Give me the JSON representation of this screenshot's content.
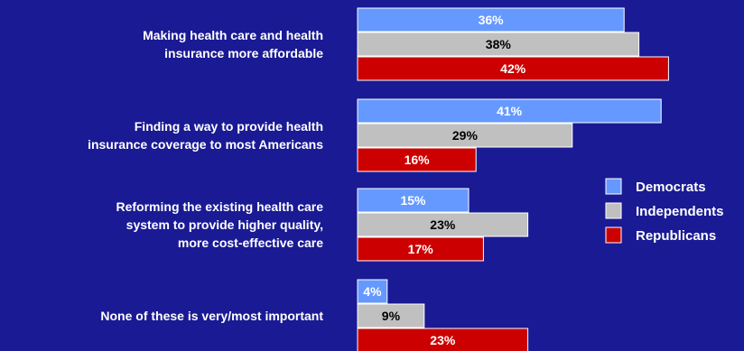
{
  "colors": {
    "background": "#1a1a94",
    "democrats": "#6699ff",
    "independents": "#c0c0c0",
    "republicans": "#cc0000"
  },
  "chart_data": {
    "type": "bar",
    "orientation": "horizontal",
    "categories": [
      [
        "Making health care and health",
        "insurance more affordable"
      ],
      [
        "Finding a way to provide health",
        "insurance coverage to most Americans"
      ],
      [
        "Reforming the existing health care",
        "system to provide higher quality,",
        "more cost-effective care"
      ],
      [
        "None of these is very/most important"
      ]
    ],
    "series": [
      {
        "name": "Democrats",
        "values": [
          36,
          41,
          15,
          4
        ],
        "color": "#6699ff",
        "label_color": "#ffffff"
      },
      {
        "name": "Independents",
        "values": [
          38,
          29,
          23,
          9
        ],
        "color": "#c0c0c0",
        "label_color": "#000000"
      },
      {
        "name": "Republicans",
        "values": [
          42,
          16,
          17,
          23
        ],
        "color": "#cc0000",
        "label_color": "#ffffff"
      }
    ],
    "value_suffix": "%",
    "xlim": [
      0,
      42
    ],
    "grid": false,
    "legend_position": "right"
  }
}
